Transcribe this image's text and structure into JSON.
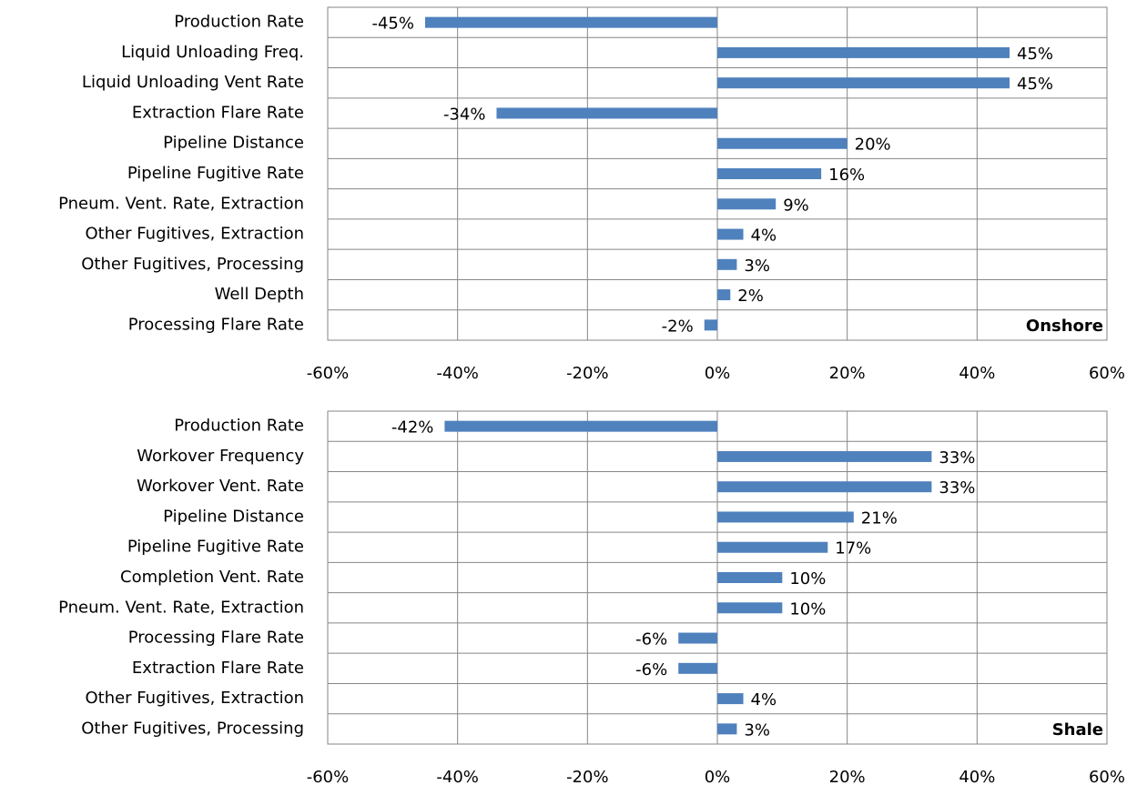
{
  "chart_data": [
    {
      "type": "bar",
      "orientation": "horizontal",
      "annotation": "Onshore",
      "categories": [
        "Production Rate",
        "Liquid Unloading Freq.",
        "Liquid Unloading Vent Rate",
        "Extraction Flare Rate",
        "Pipeline Distance",
        "Pipeline Fugitive Rate",
        "Pneum. Vent. Rate, Extraction",
        "Other Fugitives, Extraction",
        "Other Fugitives, Processing",
        "Well Depth",
        "Processing Flare Rate"
      ],
      "values": [
        -45,
        45,
        45,
        -34,
        20,
        16,
        9,
        4,
        3,
        2,
        -2
      ],
      "value_labels": [
        "-45%",
        "45%",
        "45%",
        "-34%",
        "20%",
        "16%",
        "9%",
        "4%",
        "3%",
        "2%",
        "-2%"
      ],
      "color": "#4f81bd",
      "xlim": [
        -60,
        60
      ],
      "xticks": [
        {
          "value": -60,
          "label": "-60%"
        },
        {
          "value": -40,
          "label": "-40%"
        },
        {
          "value": -20,
          "label": "-20%"
        },
        {
          "value": 0,
          "label": "0%"
        },
        {
          "value": 20,
          "label": "20%"
        },
        {
          "value": 40,
          "label": "40%"
        },
        {
          "value": 60,
          "label": "60%"
        }
      ],
      "grid": true
    },
    {
      "type": "bar",
      "orientation": "horizontal",
      "annotation": "Shale",
      "categories": [
        "Production Rate",
        "Workover Frequency",
        "Workover Vent. Rate",
        "Pipeline Distance",
        "Pipeline Fugitive Rate",
        "Completion Vent. Rate",
        "Pneum. Vent. Rate, Extraction",
        "Processing Flare Rate",
        "Extraction Flare Rate",
        "Other Fugitives, Extraction",
        "Other Fugitives, Processing"
      ],
      "values": [
        -42,
        33,
        33,
        21,
        17,
        10,
        10,
        -6,
        -6,
        4,
        3
      ],
      "value_labels": [
        "-42%",
        "33%",
        "33%",
        "21%",
        "17%",
        "10%",
        "10%",
        "-6%",
        "-6%",
        "4%",
        "3%"
      ],
      "color": "#4f81bd",
      "xlim": [
        -60,
        60
      ],
      "xticks": [
        {
          "value": -60,
          "label": "-60%"
        },
        {
          "value": -40,
          "label": "-40%"
        },
        {
          "value": -20,
          "label": "-20%"
        },
        {
          "value": 0,
          "label": "0%"
        },
        {
          "value": 20,
          "label": "20%"
        },
        {
          "value": 40,
          "label": "40%"
        },
        {
          "value": 60,
          "label": "60%"
        }
      ],
      "grid": true
    }
  ]
}
